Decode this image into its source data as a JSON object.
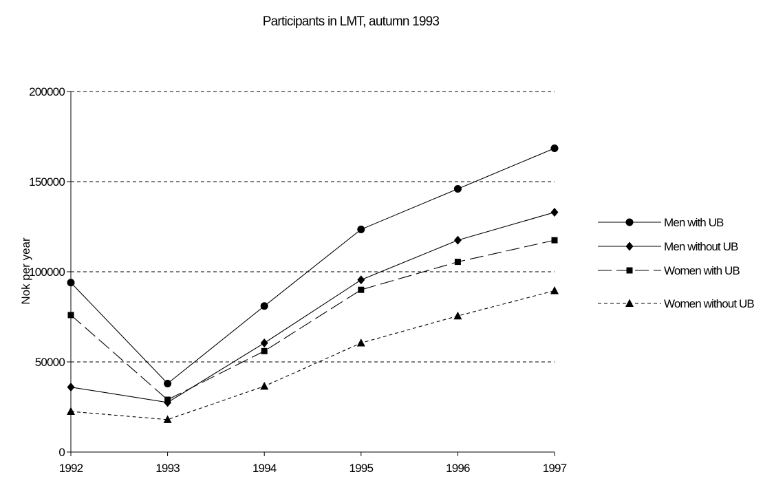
{
  "chart_data": {
    "type": "line",
    "title": "Participants in LMT, autumn 1993",
    "xlabel": "",
    "ylabel": "Nok per year",
    "x": [
      "1992",
      "1993",
      "1994",
      "1995",
      "1996",
      "1997"
    ],
    "ylim": [
      0,
      200000
    ],
    "yticks": [
      "0",
      "50000",
      "100000",
      "150000",
      "200000"
    ],
    "grid": "horizontal dashed",
    "legend_position": "right",
    "series": [
      {
        "name": "Men with UB",
        "values": [
          94000,
          38000,
          81000,
          123500,
          146000,
          168500
        ],
        "marker": "circle",
        "line_style": "solid",
        "color": "#000000"
      },
      {
        "name": "Men without UB",
        "values": [
          36000,
          27500,
          60500,
          95500,
          117500,
          133000
        ],
        "marker": "diamond",
        "line_style": "solid",
        "color": "#000000"
      },
      {
        "name": "Women with UB",
        "values": [
          76000,
          29000,
          56000,
          90000,
          105500,
          117500
        ],
        "marker": "square",
        "line_style": "long-dash",
        "color": "#000000"
      },
      {
        "name": "Women without UB",
        "values": [
          22500,
          18000,
          36500,
          60500,
          75500,
          89500
        ],
        "marker": "triangle",
        "line_style": "short-dash",
        "color": "#000000"
      }
    ]
  }
}
